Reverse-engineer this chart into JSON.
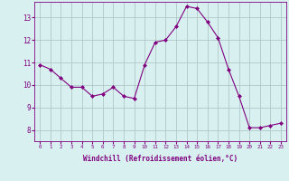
{
  "hours": [
    0,
    1,
    2,
    3,
    4,
    5,
    6,
    7,
    8,
    9,
    10,
    11,
    12,
    13,
    14,
    15,
    16,
    17,
    18,
    19,
    20,
    21,
    22,
    23
  ],
  "windchill": [
    10.9,
    10.7,
    10.3,
    9.9,
    9.9,
    9.5,
    9.6,
    9.9,
    9.5,
    9.4,
    10.9,
    11.9,
    12.0,
    12.6,
    13.5,
    13.4,
    12.8,
    12.1,
    10.7,
    9.5,
    8.1,
    8.1,
    8.2,
    8.3
  ],
  "line_color": "#800080",
  "marker": "D",
  "marker_size": 2,
  "bg_color": "#d8f0f0",
  "grid_color": "#b0c8c8",
  "xlabel": "Windchill (Refroidissement éolien,°C)",
  "xlabel_color": "#800080",
  "tick_color": "#800080",
  "ylim": [
    7.5,
    13.7
  ],
  "yticks": [
    8,
    9,
    10,
    11,
    12,
    13
  ],
  "xlim": [
    -0.5,
    23.5
  ],
  "xticks": [
    0,
    1,
    2,
    3,
    4,
    5,
    6,
    7,
    8,
    9,
    10,
    11,
    12,
    13,
    14,
    15,
    16,
    17,
    18,
    19,
    20,
    21,
    22,
    23
  ],
  "spine_color": "#800080",
  "font_family": "monospace"
}
